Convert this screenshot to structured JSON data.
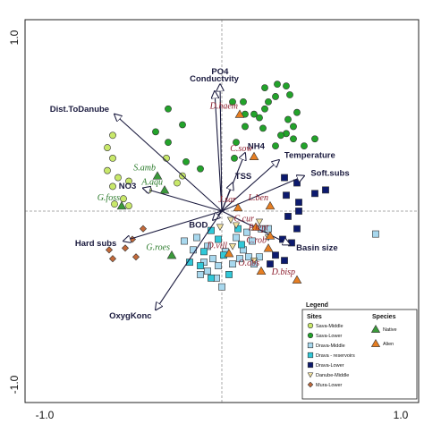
{
  "chart_data": {
    "type": "scatter",
    "title": "",
    "xlim": [
      -1.0,
      1.0
    ],
    "ylim": [
      -1.0,
      1.0
    ],
    "x_ticks": [
      "-1.0",
      "1.0"
    ],
    "y_ticks": [
      "-1.0",
      "1.0"
    ],
    "grid": false,
    "legend_position": "bottom-right",
    "vectors": [
      {
        "label": "PO4",
        "x": -0.01,
        "y": 0.72
      },
      {
        "label": "Conductvity",
        "x": -0.04,
        "y": 0.68
      },
      {
        "label": "Dist.ToDanube",
        "x": -0.6,
        "y": 0.55
      },
      {
        "label": "NH4",
        "x": 0.13,
        "y": 0.33
      },
      {
        "label": "Temperature",
        "x": 0.32,
        "y": 0.29
      },
      {
        "label": "Soft.subs",
        "x": 0.46,
        "y": 0.2
      },
      {
        "label": "TSS",
        "x": 0.06,
        "y": 0.16
      },
      {
        "label": "NO3",
        "x": -0.44,
        "y": 0.13
      },
      {
        "label": "Hard subs",
        "x": -0.55,
        "y": -0.17
      },
      {
        "label": "BOD",
        "x": -0.05,
        "y": -0.05
      },
      {
        "label": "Basin size",
        "x": 0.38,
        "y": -0.19
      },
      {
        "label": "OxygKonc",
        "x": -0.37,
        "y": -0.56
      }
    ],
    "species": [
      {
        "label": "D.haem",
        "status": "Alien",
        "x": 0.1,
        "y": 0.55
      },
      {
        "label": "C.sow",
        "status": "Alien",
        "x": 0.18,
        "y": 0.31
      },
      {
        "label": "S.amb",
        "status": "Native",
        "x": -0.36,
        "y": 0.2
      },
      {
        "label": "A.aqu",
        "status": "Native",
        "x": -0.32,
        "y": 0.12
      },
      {
        "label": "G.foss",
        "status": "Native",
        "x": -0.56,
        "y": 0.03
      },
      {
        "label": "J.sar",
        "status": "Alien",
        "x": 0.09,
        "y": 0.02
      },
      {
        "label": "L.ben",
        "status": "Alien",
        "x": 0.27,
        "y": 0.03
      },
      {
        "label": "C.cur",
        "status": "Alien",
        "x": 0.19,
        "y": -0.09
      },
      {
        "label": "P.lept",
        "status": "Alien",
        "x": 0.27,
        "y": -0.14
      },
      {
        "label": "G.roes",
        "status": "Native",
        "x": -0.28,
        "y": -0.25
      },
      {
        "label": "D.vill",
        "status": "Alien",
        "x": 0.04,
        "y": -0.24
      },
      {
        "label": "C.rob",
        "status": "Alien",
        "x": 0.26,
        "y": -0.21
      },
      {
        "label": "O.obs",
        "status": "Alien",
        "x": 0.22,
        "y": -0.34
      },
      {
        "label": "D.bisp",
        "status": "Alien",
        "x": 0.42,
        "y": -0.39
      }
    ],
    "sites": [
      {
        "group": "Sava-Middle",
        "points": [
          [
            -0.61,
            0.43
          ],
          [
            -0.64,
            0.36
          ],
          [
            -0.61,
            0.3
          ],
          [
            -0.64,
            0.23
          ],
          [
            -0.58,
            0.19
          ],
          [
            -0.52,
            0.17
          ],
          [
            -0.61,
            0.14
          ],
          [
            -0.55,
            0.07
          ],
          [
            -0.6,
            0.04
          ],
          [
            -0.52,
            0.03
          ],
          [
            -0.41,
            0.12
          ],
          [
            -0.25,
            0.16
          ],
          [
            -0.22,
            0.2
          ],
          [
            -0.31,
            0.3
          ]
        ]
      },
      {
        "group": "Sava-Lower",
        "points": [
          [
            0.24,
            0.7
          ],
          [
            0.31,
            0.72
          ],
          [
            0.36,
            0.71
          ],
          [
            0.38,
            0.66
          ],
          [
            0.3,
            0.65
          ],
          [
            0.26,
            0.62
          ],
          [
            0.06,
            0.62
          ],
          [
            0.12,
            0.62
          ],
          [
            0.24,
            0.58
          ],
          [
            0.13,
            0.55
          ],
          [
            0.18,
            0.55
          ],
          [
            0.21,
            0.53
          ],
          [
            0.37,
            0.52
          ],
          [
            0.42,
            0.56
          ],
          [
            0.4,
            0.48
          ],
          [
            0.36,
            0.44
          ],
          [
            0.23,
            0.47
          ],
          [
            0.13,
            0.48
          ],
          [
            0.33,
            0.43
          ],
          [
            0.3,
            0.37
          ],
          [
            0.4,
            0.41
          ],
          [
            0.46,
            0.37
          ],
          [
            0.52,
            0.41
          ],
          [
            0.08,
            0.39
          ],
          [
            -0.3,
            0.39
          ],
          [
            -0.37,
            0.45
          ],
          [
            -0.22,
            0.49
          ],
          [
            -0.3,
            0.58
          ],
          [
            -0.12,
            0.24
          ],
          [
            -0.2,
            0.28
          ],
          [
            0.07,
            0.3
          ]
        ]
      },
      {
        "group": "Drava-Middle",
        "points": [
          [
            -0.21,
            -0.17
          ],
          [
            -0.14,
            -0.15
          ],
          [
            -0.16,
            -0.22
          ],
          [
            -0.08,
            -0.2
          ],
          [
            -0.05,
            -0.27
          ],
          [
            -0.1,
            -0.29
          ],
          [
            -0.08,
            -0.34
          ],
          [
            -0.02,
            -0.31
          ],
          [
            0.06,
            -0.3
          ],
          [
            0.1,
            -0.27
          ],
          [
            0.12,
            -0.22
          ],
          [
            0.15,
            -0.26
          ],
          [
            0.18,
            -0.3
          ],
          [
            0.21,
            -0.26
          ],
          [
            0.02,
            -0.23
          ],
          [
            0.08,
            -0.15
          ],
          [
            0.14,
            -0.12
          ],
          [
            0.17,
            -0.17
          ],
          [
            0.22,
            -0.1
          ],
          [
            0.26,
            -0.1
          ],
          [
            -0.03,
            -0.38
          ],
          [
            -0.12,
            -0.36
          ],
          [
            0.0,
            -0.43
          ],
          [
            0.86,
            -0.13
          ]
        ]
      },
      {
        "group": "Drava-reservoirs",
        "points": [
          [
            -0.06,
            -0.11
          ],
          [
            -0.02,
            -0.16
          ],
          [
            -0.1,
            -0.23
          ],
          [
            -0.18,
            -0.29
          ],
          [
            -0.12,
            -0.31
          ],
          [
            -0.06,
            -0.38
          ],
          [
            0.04,
            -0.36
          ],
          [
            0.01,
            -0.25
          ],
          [
            0.09,
            -0.1
          ],
          [
            0.11,
            -0.19
          ]
        ]
      },
      {
        "group": "Drava-Lower",
        "points": [
          [
            0.35,
            0.19
          ],
          [
            0.42,
            0.16
          ],
          [
            0.36,
            0.09
          ],
          [
            0.43,
            0.05
          ],
          [
            0.52,
            0.1
          ],
          [
            0.58,
            0.12
          ],
          [
            0.43,
            0.0
          ],
          [
            0.37,
            -0.03
          ],
          [
            0.42,
            -0.1
          ],
          [
            0.39,
            -0.18
          ],
          [
            0.34,
            -0.16
          ],
          [
            0.3,
            -0.25
          ],
          [
            0.35,
            -0.28
          ],
          [
            0.27,
            -0.3
          ]
        ]
      },
      {
        "group": "Danube-Middle",
        "points": [
          [
            0.05,
            -0.05
          ],
          [
            0.08,
            -0.08
          ],
          [
            0.21,
            -0.06
          ],
          [
            0.26,
            -0.15
          ],
          [
            0.18,
            -0.28
          ],
          [
            0.06,
            -0.2
          ],
          [
            -0.01,
            -0.09
          ]
        ]
      },
      {
        "group": "Mura-Lower",
        "points": [
          [
            -0.44,
            -0.1
          ],
          [
            -0.5,
            -0.16
          ],
          [
            -0.54,
            -0.21
          ],
          [
            -0.63,
            -0.22
          ],
          [
            -0.61,
            -0.27
          ],
          [
            -0.48,
            -0.26
          ]
        ]
      }
    ],
    "legend": {
      "title": "Legend",
      "sites_title": "Sites",
      "species_title": "Species",
      "sites": [
        "Sava-Middle",
        "Sava-Lower",
        "Drava-Middle",
        "Drava - reservoirs",
        "Drava-Lower",
        "Danube-Middle",
        "Mura-Lower"
      ],
      "species": [
        "Native",
        "Alien"
      ]
    },
    "colors": {
      "vector": "#1a1a3e",
      "native_label": "#2a7a2a",
      "alien_label": "#8b1a2a",
      "native_marker": "#3a9a3a",
      "alien_marker": "#e67e22",
      "sava_middle": "#c8e86a",
      "sava_lower": "#22a32a",
      "drava_middle": "#a8d8ee",
      "drava_reservoirs": "#30c8d8",
      "drava_lower": "#0c1a6e",
      "danube_middle": "#f2e2a0",
      "mura_lower": "#c46a3a"
    }
  }
}
